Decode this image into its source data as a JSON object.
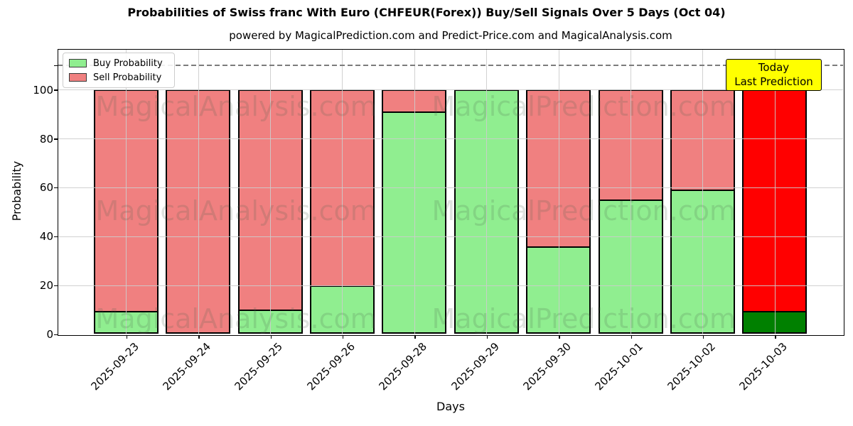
{
  "title": "Probabilities of Swiss franc With Euro (CHFEUR(Forex)) Buy/Sell Signals Over 5 Days (Oct 04)",
  "subtitle": "powered by MagicalPrediction.com and Predict-Price.com and MagicalAnalysis.com",
  "axes": {
    "xlabel": "Days",
    "ylabel": "Probability"
  },
  "legend": {
    "items": [
      {
        "label": "Buy Probability",
        "color_key": "buy"
      },
      {
        "label": "Sell Probability",
        "color_key": "sell"
      }
    ]
  },
  "annotation": {
    "line1": "Today",
    "line2": "Last Prediction"
  },
  "watermarks": {
    "left": "MagicalAnalysis.com",
    "right": "MagicalPrediction.com"
  },
  "colors": {
    "buy": "#90ee90",
    "sell": "#f08080",
    "today_buy": "#008000",
    "today_sell": "#ff0000",
    "annotation_bg": "#ffff00",
    "grid": "#cccccc",
    "dashed_line": "#7c7c7c",
    "bar_edge": "#000000"
  },
  "chart_data": {
    "type": "bar",
    "stacked": true,
    "categories": [
      "2025-09-23",
      "2025-09-24",
      "2025-09-25",
      "2025-09-26",
      "2025-09-28",
      "2025-09-29",
      "2025-09-30",
      "2025-10-01",
      "2025-10-02",
      "2025-10-03"
    ],
    "series": [
      {
        "name": "Buy Probability",
        "values": [
          9.5,
          0,
          10,
          20,
          91,
          100,
          36,
          55,
          59,
          9.5
        ]
      },
      {
        "name": "Sell Probability",
        "values": [
          90.5,
          100,
          90,
          80,
          9,
          0,
          64,
          45,
          41,
          90.5
        ]
      }
    ],
    "title": "Probabilities of Swiss franc With Euro (CHFEUR(Forex)) Buy/Sell Signals Over 5 Days (Oct 04)",
    "xlabel": "Days",
    "ylabel": "Probability",
    "ylim": [
      0,
      116.5
    ],
    "yticks": [
      0,
      20,
      40,
      60,
      80,
      100
    ],
    "dashed_hline_y": 110,
    "today_index": 9,
    "legend_position": "upper left",
    "grid": true
  }
}
